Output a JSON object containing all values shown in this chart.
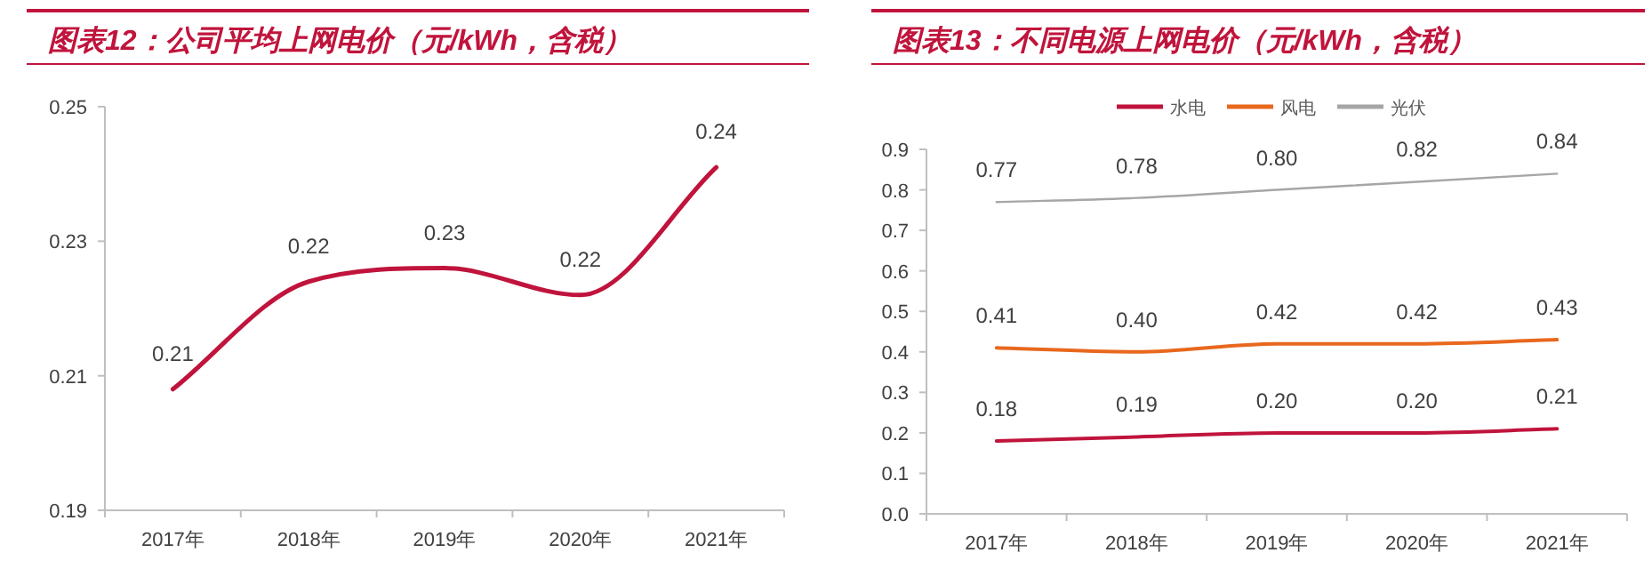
{
  "chart_data": [
    {
      "type": "line",
      "title": "图表12：公司平均上网电价（元/kWh，含税）",
      "categories": [
        "2017年",
        "2018年",
        "2019年",
        "2020年",
        "2021年"
      ],
      "series": [
        {
          "color": "#c0143c",
          "values": [
            0.208,
            0.224,
            0.226,
            0.222,
            0.241
          ],
          "value_labels": [
            "0.21",
            "0.22",
            "0.23",
            "0.22",
            "0.24"
          ]
        }
      ],
      "ylim": [
        0.19,
        0.25
      ],
      "yticks": [
        0.19,
        0.21,
        0.23,
        0.25
      ],
      "grid": false,
      "legend": false
    },
    {
      "type": "line",
      "title": "图表13：不同电源上网电价（元/kWh，含税）",
      "categories": [
        "2017年",
        "2018年",
        "2019年",
        "2020年",
        "2021年"
      ],
      "series": [
        {
          "name": "水电",
          "color": "#c0143c",
          "values": [
            0.18,
            0.19,
            0.2,
            0.2,
            0.21
          ],
          "value_labels": [
            "0.18",
            "0.19",
            "0.20",
            "0.20",
            "0.21"
          ]
        },
        {
          "name": "风电",
          "color": "#e8681e",
          "values": [
            0.41,
            0.4,
            0.42,
            0.42,
            0.43
          ],
          "value_labels": [
            "0.41",
            "0.40",
            "0.42",
            "0.42",
            "0.43"
          ]
        },
        {
          "name": "光伏",
          "color": "#a6a6a6",
          "values": [
            0.77,
            0.78,
            0.8,
            0.82,
            0.84
          ],
          "value_labels": [
            "0.77",
            "0.78",
            "0.80",
            "0.82",
            "0.84"
          ]
        }
      ],
      "ylim": [
        0,
        0.9
      ],
      "yticks": [
        {
          "value": 0,
          "label": "0.0"
        },
        0.1,
        0.2,
        0.3,
        0.4,
        0.5,
        0.6,
        0.7,
        0.8,
        0.9
      ],
      "grid": false,
      "legend": "top"
    }
  ]
}
